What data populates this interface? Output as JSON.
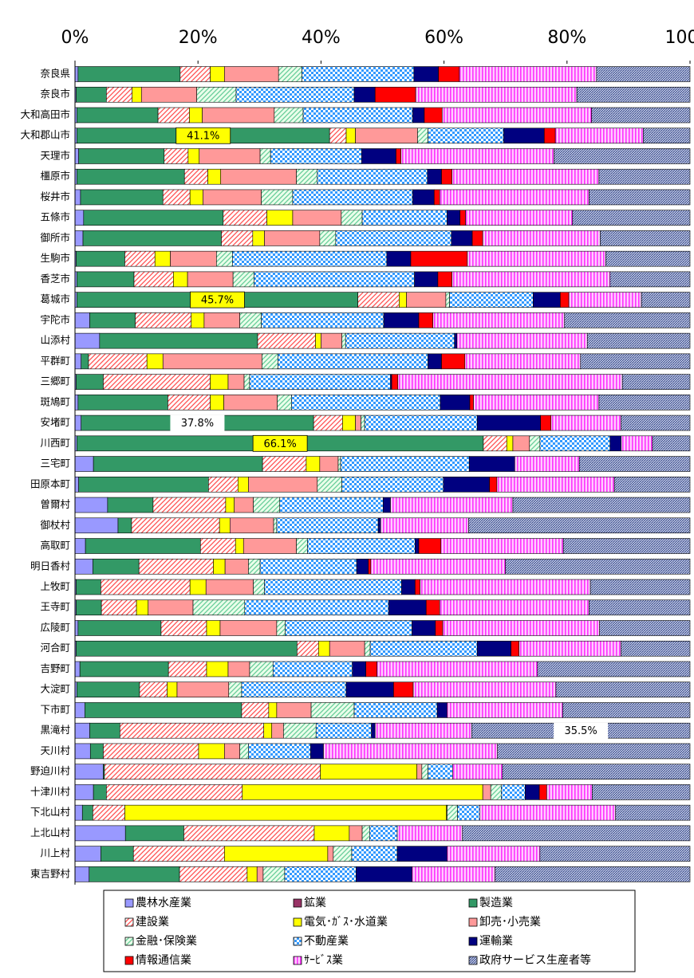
{
  "chart_data": {
    "type": "stacked-barh",
    "categories": [
      "奈良県",
      "奈良市",
      "大和高田市",
      "大和郡山市",
      "天理市",
      "橿原市",
      "桜井市",
      "五條市",
      "御所市",
      "生駒市",
      "香芝市",
      "葛城市",
      "宇陀市",
      "山添村",
      "平群町",
      "三郷町",
      "斑鳩町",
      "安堵町",
      "川西町",
      "三宅町",
      "田原本町",
      "曽爾村",
      "御杖村",
      "高取町",
      "明日香村",
      "上牧町",
      "王寺町",
      "広陵町",
      "河合町",
      "吉野町",
      "大淀町",
      "下市町",
      "黒滝村",
      "天川村",
      "野迫川村",
      "十津川村",
      "下北山村",
      "上北山村",
      "川上村",
      "東吉野村"
    ],
    "xlim": [
      0,
      100
    ],
    "xticks": [
      {
        "value": 0,
        "label": "0%"
      },
      {
        "value": 20,
        "label": "20%"
      },
      {
        "value": 40,
        "label": "40%"
      },
      {
        "value": 60,
        "label": "60%"
      },
      {
        "value": 80,
        "label": "80%"
      },
      {
        "value": 100,
        "label": "100%"
      }
    ],
    "legend": "bottom",
    "series": [
      {
        "name": "農林水産業",
        "color": "#9999ff",
        "values": [
          0.5,
          0.2,
          0.3,
          0.3,
          0.6,
          0.3,
          0.9,
          1.4,
          1.3,
          0.2,
          0.3,
          0.3,
          2.4,
          4.0,
          1.0,
          0.2,
          0.5,
          1.0,
          0.3,
          3.0,
          0.6,
          5.3,
          7.0,
          1.7,
          2.9,
          0.2,
          0.2,
          0.5,
          0.2,
          0.8,
          0.3,
          1.6,
          2.4,
          2.5,
          4.6,
          3.0,
          1.2,
          8.2,
          4.2,
          2.3
        ]
      },
      {
        "name": "鉱業",
        "color": "#993366",
        "values": [
          0,
          0,
          0,
          0,
          0,
          0,
          0,
          0,
          0,
          0,
          0,
          0,
          0,
          0,
          0,
          0,
          0,
          0,
          0,
          0,
          0,
          0,
          0,
          0,
          0,
          0,
          0,
          0,
          0,
          0,
          0,
          0,
          0,
          0,
          0,
          0,
          0,
          0,
          0,
          0
        ]
      },
      {
        "name": "製造業",
        "color": "#339966",
        "values": [
          16.6,
          4.9,
          13.2,
          41.1,
          13.9,
          17.5,
          13.4,
          22.7,
          22.5,
          7.9,
          9.3,
          45.7,
          7.4,
          25.7,
          1.2,
          4.4,
          14.6,
          37.8,
          66.1,
          27.5,
          21.1,
          7.4,
          2.2,
          18.7,
          7.5,
          4.0,
          4.1,
          13.5,
          35.9,
          14.4,
          10.2,
          25.5,
          4.9,
          2.1,
          0.2,
          2.1,
          1.7,
          9.5,
          5.3,
          14.7
        ],
        "value_labels": [
          null,
          null,
          null,
          "41.1%",
          null,
          null,
          null,
          null,
          null,
          null,
          null,
          "45.7%",
          null,
          null,
          null,
          null,
          null,
          "37.8%",
          "66.1%",
          null,
          null,
          null,
          null,
          null,
          null,
          null,
          null,
          null,
          null,
          null,
          null,
          null,
          null,
          null,
          null,
          null,
          null,
          null,
          null,
          null
        ]
      },
      {
        "name": "建設業",
        "color": "#ff5050",
        "values": [
          4.9,
          4.2,
          5.1,
          2.7,
          3.9,
          3.8,
          4.4,
          7.1,
          5.1,
          4.9,
          6.4,
          6.7,
          9.1,
          9.4,
          9.5,
          17.4,
          6.9,
          4.7,
          3.8,
          7.1,
          4.8,
          11.8,
          14.3,
          5.7,
          12.1,
          14.5,
          5.7,
          7.4,
          3.5,
          6.2,
          4.5,
          4.4,
          23.4,
          15.5,
          35.1,
          22.1,
          5.2,
          21.2,
          14.8,
          11.0
        ]
      },
      {
        "name": "電気･ｶﾞｽ･水道業",
        "color": "#ffff00",
        "values": [
          2.3,
          1.5,
          2.1,
          1.5,
          1.8,
          2.1,
          2.1,
          4.2,
          1.9,
          2.5,
          2.3,
          1.2,
          2.1,
          0.9,
          2.6,
          2.9,
          2.2,
          2.1,
          1.0,
          2.2,
          1.7,
          1.4,
          1.7,
          1.3,
          1.9,
          2.6,
          1.9,
          2.2,
          1.8,
          3.5,
          1.6,
          1.3,
          1.3,
          4.2,
          15.7,
          39.1,
          52.3,
          5.7,
          16.8,
          1.6
        ]
      },
      {
        "name": "卸売･小売業",
        "color": "#ff9999",
        "values": [
          8.8,
          9.0,
          11.7,
          10.1,
          9.9,
          12.3,
          9.5,
          7.9,
          9.0,
          7.5,
          7.4,
          6.4,
          5.8,
          3.4,
          16.1,
          2.6,
          8.7,
          0.9,
          2.7,
          3.0,
          11.2,
          3.1,
          7.1,
          8.6,
          3.8,
          7.7,
          7.3,
          9.2,
          5.7,
          3.5,
          8.4,
          5.6,
          1.9,
          2.5,
          0.8,
          1.3,
          0.1,
          2.1,
          0.9,
          1.0
        ]
      },
      {
        "name": "金融･保険業",
        "color": "#66cc99",
        "values": [
          3.8,
          6.4,
          4.7,
          1.7,
          1.7,
          3.4,
          5.1,
          3.4,
          2.6,
          2.6,
          3.4,
          0.6,
          3.5,
          0.6,
          2.6,
          0.9,
          2.3,
          0.6,
          1.7,
          0.4,
          4.0,
          4.3,
          0.5,
          1.8,
          1.9,
          1.8,
          8.4,
          1.4,
          0.9,
          3.8,
          2.1,
          7.0,
          5.3,
          1.4,
          1.0,
          1.7,
          1.7,
          1.2,
          3.0,
          3.5
        ]
      },
      {
        "name": "不動産業",
        "color": "#3399ff",
        "values": [
          18.2,
          19.2,
          17.8,
          12.3,
          14.8,
          17.9,
          19.5,
          13.8,
          18.8,
          25.1,
          26.1,
          13.6,
          19.9,
          17.7,
          24.4,
          22.9,
          24.2,
          18.3,
          11.4,
          20.9,
          16.5,
          16.8,
          16.5,
          17.5,
          15.7,
          22.3,
          23.4,
          20.6,
          17.4,
          12.9,
          17.0,
          13.5,
          9.0,
          10.1,
          4.0,
          3.9,
          3.6,
          4.5,
          7.4,
          11.6
        ]
      },
      {
        "name": "運輸業",
        "color": "#000080",
        "values": [
          4.0,
          3.4,
          1.9,
          6.6,
          5.6,
          2.3,
          3.5,
          2.1,
          3.4,
          3.9,
          3.8,
          4.4,
          5.7,
          0.4,
          2.2,
          0.2,
          4.8,
          10.3,
          1.8,
          7.4,
          7.5,
          1.2,
          0.4,
          0.6,
          1.9,
          2.2,
          6.1,
          3.8,
          5.5,
          2.2,
          7.7,
          1.6,
          0.6,
          2.1,
          0,
          2.3,
          0,
          0,
          8.1,
          9.1
        ]
      },
      {
        "name": "情報通信業",
        "color": "#ff0000",
        "values": [
          3.4,
          6.6,
          2.9,
          1.8,
          0.8,
          1.7,
          0.9,
          0.9,
          1.7,
          9.2,
          2.3,
          1.4,
          2.3,
          0,
          3.8,
          1.0,
          0.6,
          1.7,
          0,
          0,
          1.2,
          0,
          0,
          3.6,
          0.4,
          0.8,
          2.2,
          1.2,
          1.3,
          1.8,
          3.2,
          0,
          0,
          0,
          0,
          1.2,
          0,
          0,
          0,
          0
        ]
      },
      {
        "name": "ｻｰﾋﾞｽ業",
        "color": "#ff33ff",
        "values": [
          22.3,
          26.2,
          24.3,
          14.3,
          24.9,
          23.9,
          24.3,
          17.4,
          19.1,
          22.5,
          25.7,
          11.8,
          21.4,
          21.2,
          18.8,
          36.5,
          20.4,
          11.4,
          5.1,
          10.5,
          19.1,
          19.9,
          14.3,
          19.9,
          21.9,
          27.7,
          24.3,
          25.5,
          16.6,
          26.1,
          23.2,
          18.8,
          15.7,
          28.3,
          8.1,
          7.4,
          22.1,
          10.6,
          15.1,
          13.5
        ]
      },
      {
        "name": "政府サービス生産者等",
        "color": "#334488",
        "values": [
          15.2,
          18.4,
          16.0,
          7.6,
          22.1,
          14.8,
          16.4,
          19.1,
          14.6,
          13.7,
          13.0,
          7.9,
          20.4,
          16.7,
          17.8,
          11.0,
          14.8,
          11.2,
          6.1,
          18.0,
          12.3,
          28.8,
          36.0,
          20.6,
          30.0,
          16.2,
          16.4,
          14.7,
          11.2,
          24.8,
          21.8,
          20.7,
          35.5,
          31.3,
          30.5,
          15.9,
          12.1,
          37.0,
          24.4,
          31.7
        ],
        "value_labels": [
          null,
          null,
          null,
          null,
          null,
          null,
          null,
          null,
          null,
          null,
          null,
          null,
          null,
          null,
          null,
          null,
          null,
          null,
          null,
          null,
          null,
          null,
          null,
          null,
          null,
          null,
          null,
          null,
          null,
          null,
          null,
          null,
          "35.5%",
          null,
          null,
          null,
          null,
          null,
          null,
          null
        ]
      }
    ]
  }
}
